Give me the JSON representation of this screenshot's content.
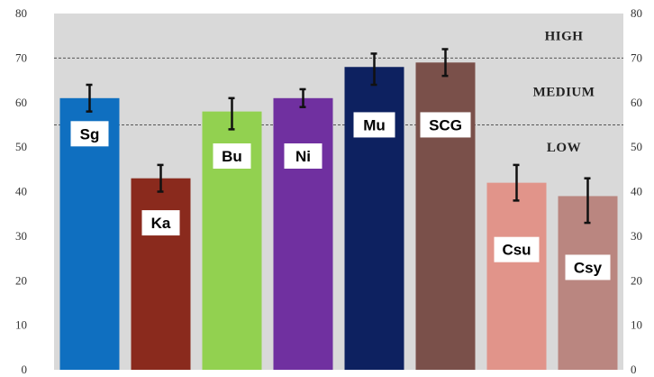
{
  "chart_data": {
    "type": "bar",
    "categories": [
      "Sg",
      "Ka",
      "Bu",
      "Ni",
      "Mu",
      "SCG",
      "Csu",
      "Csy"
    ],
    "values": [
      61,
      43,
      58,
      61,
      68,
      69,
      42,
      39
    ],
    "error_low": [
      58,
      40,
      54,
      59,
      64,
      66,
      38,
      33
    ],
    "error_high": [
      64,
      46,
      61,
      63,
      71,
      72,
      46,
      43
    ],
    "bar_colors": [
      "#0f6fc0",
      "#8a2a1d",
      "#92d150",
      "#7030a0",
      "#0d2160",
      "#7a504a",
      "#e1948a",
      "#ba8680"
    ],
    "ylim": [
      0,
      80
    ],
    "yticks": [
      0,
      10,
      20,
      30,
      40,
      50,
      60,
      70,
      80
    ],
    "title": "",
    "xlabel": "",
    "ylabel": "",
    "reference_lines": [
      55,
      70
    ],
    "bands": [
      {
        "label": "HIGH",
        "value": 75
      },
      {
        "label": "MEDIUM",
        "value": 62.5
      },
      {
        "label": "LOW",
        "value": 50
      }
    ],
    "background": "#d9d9d9",
    "grid": false,
    "dual_y_axis": true
  }
}
